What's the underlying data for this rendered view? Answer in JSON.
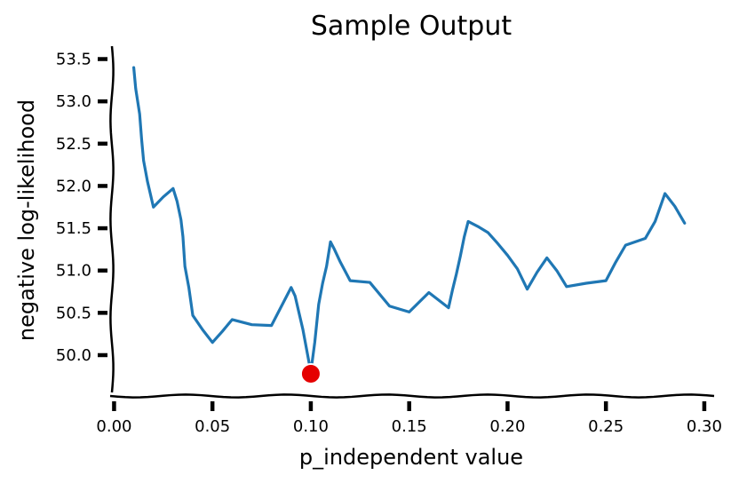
{
  "chart_data": {
    "type": "line",
    "title": "Sample Output",
    "xlabel": "p_independent value",
    "ylabel": "negative log-likelihood",
    "xlim": [
      -0.002,
      0.305
    ],
    "ylim": [
      49.58,
      53.6
    ],
    "xticks": [
      0.0,
      0.05,
      0.1,
      0.15,
      0.2,
      0.25,
      0.3
    ],
    "xtick_labels": [
      "0.00",
      "0.05",
      "0.10",
      "0.15",
      "0.20",
      "0.25",
      "0.30"
    ],
    "yticks": [
      50.0,
      50.5,
      51.0,
      51.5,
      52.0,
      52.5,
      53.0,
      53.5
    ],
    "ytick_labels": [
      "50.0",
      "50.5",
      "51.0",
      "51.5",
      "52.0",
      "52.5",
      "53.0",
      "53.5"
    ],
    "grid": false,
    "series": [
      {
        "color": "#1f77b4",
        "x": [
          0.01,
          0.011,
          0.013,
          0.014,
          0.015,
          0.017,
          0.02,
          0.025,
          0.03,
          0.032,
          0.034,
          0.035,
          0.036,
          0.038,
          0.04,
          0.045,
          0.05,
          0.055,
          0.06,
          0.065,
          0.07,
          0.08,
          0.09,
          0.092,
          0.094,
          0.096,
          0.098,
          0.1,
          0.102,
          0.104,
          0.106,
          0.108,
          0.11,
          0.112,
          0.115,
          0.12,
          0.13,
          0.14,
          0.15,
          0.16,
          0.17,
          0.172,
          0.174,
          0.176,
          0.178,
          0.18,
          0.185,
          0.19,
          0.195,
          0.2,
          0.205,
          0.21,
          0.215,
          0.22,
          0.225,
          0.23,
          0.24,
          0.25,
          0.255,
          0.26,
          0.27,
          0.275,
          0.28,
          0.285,
          0.29
        ],
        "y": [
          53.4,
          53.15,
          52.85,
          52.55,
          52.3,
          52.05,
          51.75,
          51.87,
          51.97,
          51.82,
          51.6,
          51.4,
          51.05,
          50.8,
          50.47,
          50.3,
          50.15,
          50.28,
          50.42,
          50.39,
          50.36,
          50.35,
          50.8,
          50.7,
          50.5,
          50.3,
          50.05,
          49.8,
          50.15,
          50.6,
          50.85,
          51.05,
          51.34,
          51.25,
          51.1,
          50.88,
          50.86,
          50.58,
          50.51,
          50.74,
          50.56,
          50.77,
          50.96,
          51.17,
          51.4,
          51.58,
          51.52,
          51.45,
          51.32,
          51.18,
          51.02,
          50.78,
          50.98,
          51.15,
          51.0,
          50.81,
          50.85,
          50.88,
          51.1,
          51.3,
          51.38,
          51.58,
          51.91,
          51.76,
          51.56
        ]
      }
    ],
    "marker": {
      "x": 0.1,
      "y": 49.78,
      "color": "#e50000"
    }
  }
}
